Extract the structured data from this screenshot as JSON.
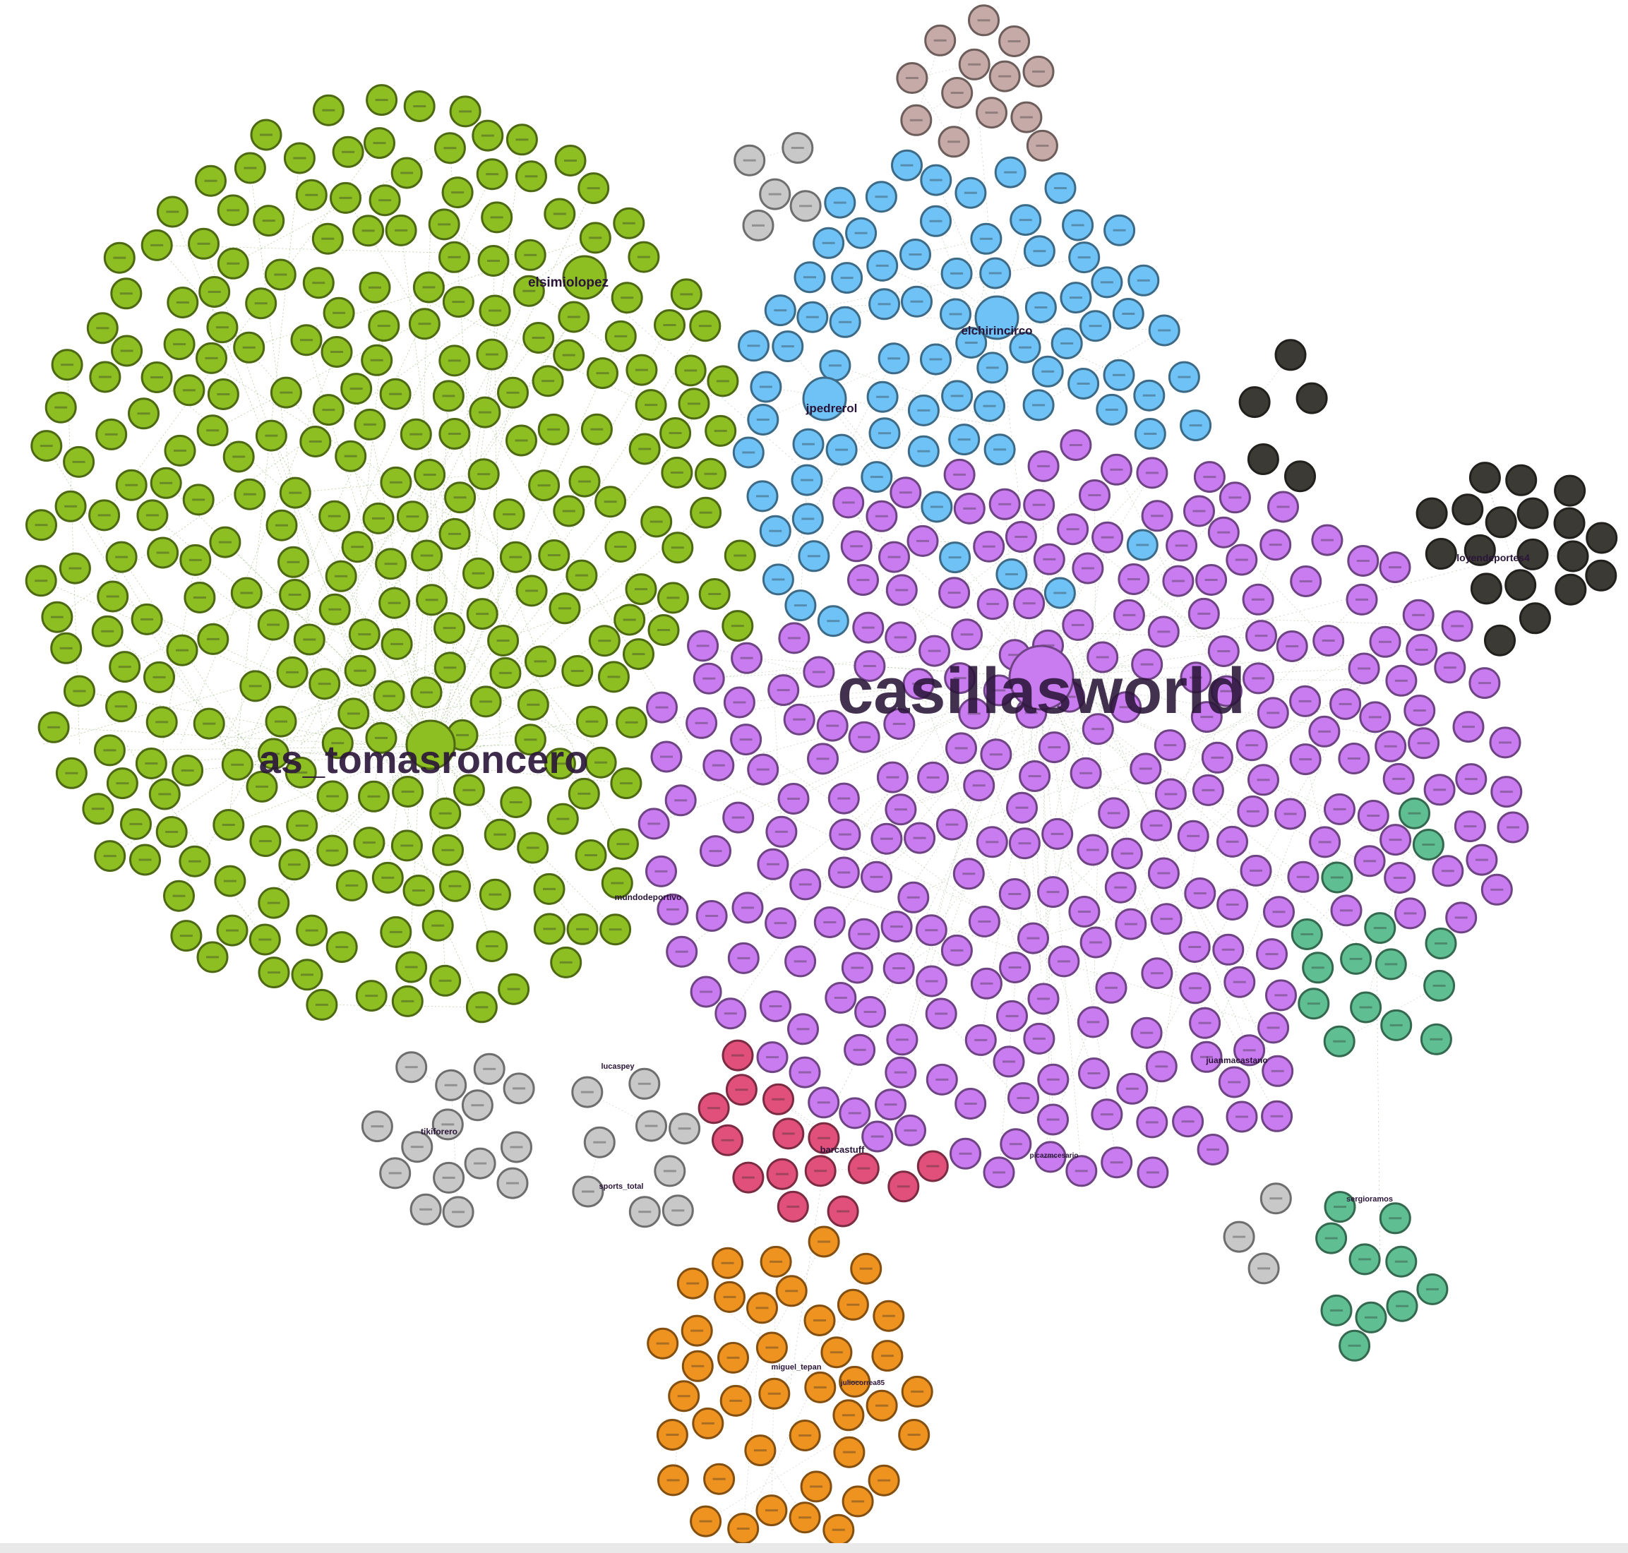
{
  "colors": {
    "green": "#8DBE22",
    "blue": "#6EC2F5",
    "purple": "#C97BF0",
    "pink": "#E0507A",
    "orange": "#EE9220",
    "gray": "#C8C8C8",
    "taupe": "#C6AAA8",
    "teal": "#5FBF92",
    "dark": "#3C3A35"
  },
  "hubs": [
    {
      "name": "casillasworld",
      "color": "purple"
    },
    {
      "name": "as_tomasroncero",
      "color": "green"
    },
    {
      "name": "elsimiolopez",
      "color": "green"
    },
    {
      "name": "elchirincirco",
      "color": "blue"
    },
    {
      "name": "jpedrerol",
      "color": "blue"
    }
  ],
  "cluster_labels": [
    "loyendeportes4",
    "barcastuff",
    "tikiforero",
    "juanmacastano",
    "mundodeportivo",
    "sergioramos",
    "miguel_tepan",
    "sports_total",
    "lucaspey",
    "juliocorrea85",
    "picazmcesario"
  ]
}
